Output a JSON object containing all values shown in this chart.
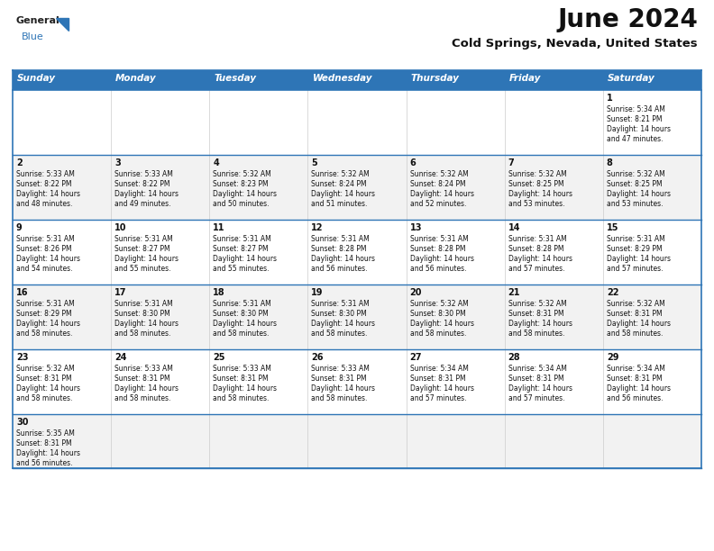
{
  "title": "June 2024",
  "subtitle": "Cold Springs, Nevada, United States",
  "header_color": "#2E75B6",
  "header_text_color": "#FFFFFF",
  "days_of_week": [
    "Sunday",
    "Monday",
    "Tuesday",
    "Wednesday",
    "Thursday",
    "Friday",
    "Saturday"
  ],
  "bg_color": "#FFFFFF",
  "row_colors": [
    "#FFFFFF",
    "#F2F2F2",
    "#FFFFFF",
    "#F2F2F2",
    "#FFFFFF",
    "#F2F2F2"
  ],
  "cell_border_color": "#2E75B6",
  "title_fontsize": 20,
  "subtitle_fontsize": 9.5,
  "day_num_fontsize": 7,
  "cell_text_fontsize": 5.5,
  "header_fontsize": 7.5,
  "logo_general_fontsize": 8,
  "logo_blue_fontsize": 8,
  "calendar": [
    [
      null,
      null,
      null,
      null,
      null,
      null,
      {
        "day": 1,
        "sunrise": "5:34 AM",
        "sunset": "8:21 PM",
        "hours": 14,
        "minutes": 47
      }
    ],
    [
      {
        "day": 2,
        "sunrise": "5:33 AM",
        "sunset": "8:22 PM",
        "hours": 14,
        "minutes": 48
      },
      {
        "day": 3,
        "sunrise": "5:33 AM",
        "sunset": "8:22 PM",
        "hours": 14,
        "minutes": 49
      },
      {
        "day": 4,
        "sunrise": "5:32 AM",
        "sunset": "8:23 PM",
        "hours": 14,
        "minutes": 50
      },
      {
        "day": 5,
        "sunrise": "5:32 AM",
        "sunset": "8:24 PM",
        "hours": 14,
        "minutes": 51
      },
      {
        "day": 6,
        "sunrise": "5:32 AM",
        "sunset": "8:24 PM",
        "hours": 14,
        "minutes": 52
      },
      {
        "day": 7,
        "sunrise": "5:32 AM",
        "sunset": "8:25 PM",
        "hours": 14,
        "minutes": 53
      },
      {
        "day": 8,
        "sunrise": "5:32 AM",
        "sunset": "8:25 PM",
        "hours": 14,
        "minutes": 53
      }
    ],
    [
      {
        "day": 9,
        "sunrise": "5:31 AM",
        "sunset": "8:26 PM",
        "hours": 14,
        "minutes": 54
      },
      {
        "day": 10,
        "sunrise": "5:31 AM",
        "sunset": "8:27 PM",
        "hours": 14,
        "minutes": 55
      },
      {
        "day": 11,
        "sunrise": "5:31 AM",
        "sunset": "8:27 PM",
        "hours": 14,
        "minutes": 55
      },
      {
        "day": 12,
        "sunrise": "5:31 AM",
        "sunset": "8:28 PM",
        "hours": 14,
        "minutes": 56
      },
      {
        "day": 13,
        "sunrise": "5:31 AM",
        "sunset": "8:28 PM",
        "hours": 14,
        "minutes": 56
      },
      {
        "day": 14,
        "sunrise": "5:31 AM",
        "sunset": "8:28 PM",
        "hours": 14,
        "minutes": 57
      },
      {
        "day": 15,
        "sunrise": "5:31 AM",
        "sunset": "8:29 PM",
        "hours": 14,
        "minutes": 57
      }
    ],
    [
      {
        "day": 16,
        "sunrise": "5:31 AM",
        "sunset": "8:29 PM",
        "hours": 14,
        "minutes": 58
      },
      {
        "day": 17,
        "sunrise": "5:31 AM",
        "sunset": "8:30 PM",
        "hours": 14,
        "minutes": 58
      },
      {
        "day": 18,
        "sunrise": "5:31 AM",
        "sunset": "8:30 PM",
        "hours": 14,
        "minutes": 58
      },
      {
        "day": 19,
        "sunrise": "5:31 AM",
        "sunset": "8:30 PM",
        "hours": 14,
        "minutes": 58
      },
      {
        "day": 20,
        "sunrise": "5:32 AM",
        "sunset": "8:30 PM",
        "hours": 14,
        "minutes": 58
      },
      {
        "day": 21,
        "sunrise": "5:32 AM",
        "sunset": "8:31 PM",
        "hours": 14,
        "minutes": 58
      },
      {
        "day": 22,
        "sunrise": "5:32 AM",
        "sunset": "8:31 PM",
        "hours": 14,
        "minutes": 58
      }
    ],
    [
      {
        "day": 23,
        "sunrise": "5:32 AM",
        "sunset": "8:31 PM",
        "hours": 14,
        "minutes": 58
      },
      {
        "day": 24,
        "sunrise": "5:33 AM",
        "sunset": "8:31 PM",
        "hours": 14,
        "minutes": 58
      },
      {
        "day": 25,
        "sunrise": "5:33 AM",
        "sunset": "8:31 PM",
        "hours": 14,
        "minutes": 58
      },
      {
        "day": 26,
        "sunrise": "5:33 AM",
        "sunset": "8:31 PM",
        "hours": 14,
        "minutes": 58
      },
      {
        "day": 27,
        "sunrise": "5:34 AM",
        "sunset": "8:31 PM",
        "hours": 14,
        "minutes": 57
      },
      {
        "day": 28,
        "sunrise": "5:34 AM",
        "sunset": "8:31 PM",
        "hours": 14,
        "minutes": 57
      },
      {
        "day": 29,
        "sunrise": "5:34 AM",
        "sunset": "8:31 PM",
        "hours": 14,
        "minutes": 56
      }
    ],
    [
      {
        "day": 30,
        "sunrise": "5:35 AM",
        "sunset": "8:31 PM",
        "hours": 14,
        "minutes": 56
      },
      null,
      null,
      null,
      null,
      null,
      null
    ]
  ]
}
